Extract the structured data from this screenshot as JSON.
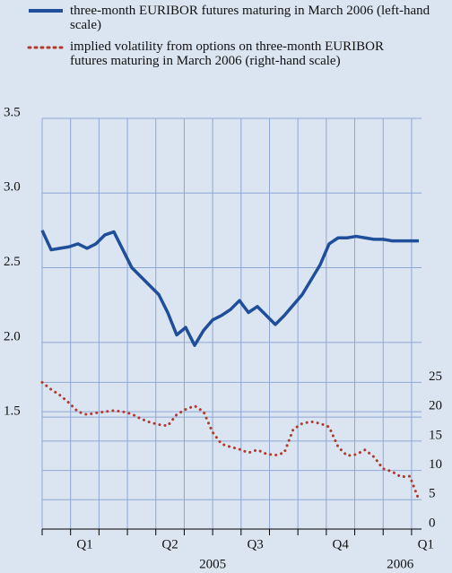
{
  "chart_data": {
    "type": "line",
    "series": [
      {
        "name": "three-month EURIBOR futures maturing in March 2006 (left-hand scale)",
        "color": "#1f4e9a",
        "style": "solid",
        "axis": "y",
        "values": [
          2.75,
          2.62,
          2.63,
          2.64,
          2.66,
          2.63,
          2.66,
          2.72,
          2.74,
          2.62,
          2.5,
          2.44,
          2.38,
          2.32,
          2.2,
          2.05,
          2.1,
          1.98,
          2.08,
          2.15,
          2.18,
          2.22,
          2.28,
          2.2,
          2.24,
          2.18,
          2.12,
          2.18,
          2.25,
          2.32,
          2.42,
          2.52,
          2.66,
          2.7,
          2.7,
          2.71,
          2.7,
          2.69,
          2.69,
          2.68,
          2.68,
          2.68,
          2.68
        ]
      },
      {
        "name": "implied volatility from options on three-month EURIBOR futures maturing in March 2006 (right-hand scale)",
        "color": "#b03a2e",
        "style": "dotted",
        "axis": "y2",
        "values": [
          25,
          23.8,
          22.8,
          21.5,
          20,
          19.5,
          19.8,
          20,
          20.2,
          20,
          19.6,
          18.8,
          18.2,
          17.8,
          17.6,
          19.5,
          20.4,
          21,
          20,
          16.5,
          14.5,
          14,
          13.6,
          13,
          13.5,
          12.8,
          12.6,
          13,
          17,
          18,
          18.3,
          18,
          17.4,
          14,
          12.5,
          12.7,
          13.5,
          12.3,
          10.3,
          9.8,
          8.9,
          9,
          5
        ]
      }
    ],
    "quarters": [
      "Q1",
      "Q2",
      "Q3",
      "Q4",
      "Q1"
    ],
    "years": [
      "2005",
      "2006"
    ],
    "ylim": [
      0.75,
      3.5
    ],
    "yticks": [
      {
        "value": 1.5,
        "label": "1.5"
      },
      {
        "value": 2,
        "label": "2.0"
      },
      {
        "value": 2.5,
        "label": "2.5"
      },
      {
        "value": 3,
        "label": "3.0"
      },
      {
        "value": 3.5,
        "label": "3.5"
      }
    ],
    "y2lim": [
      0,
      70
    ],
    "y2ticks": [
      0,
      5,
      10,
      15,
      20,
      25
    ],
    "grid": true
  }
}
